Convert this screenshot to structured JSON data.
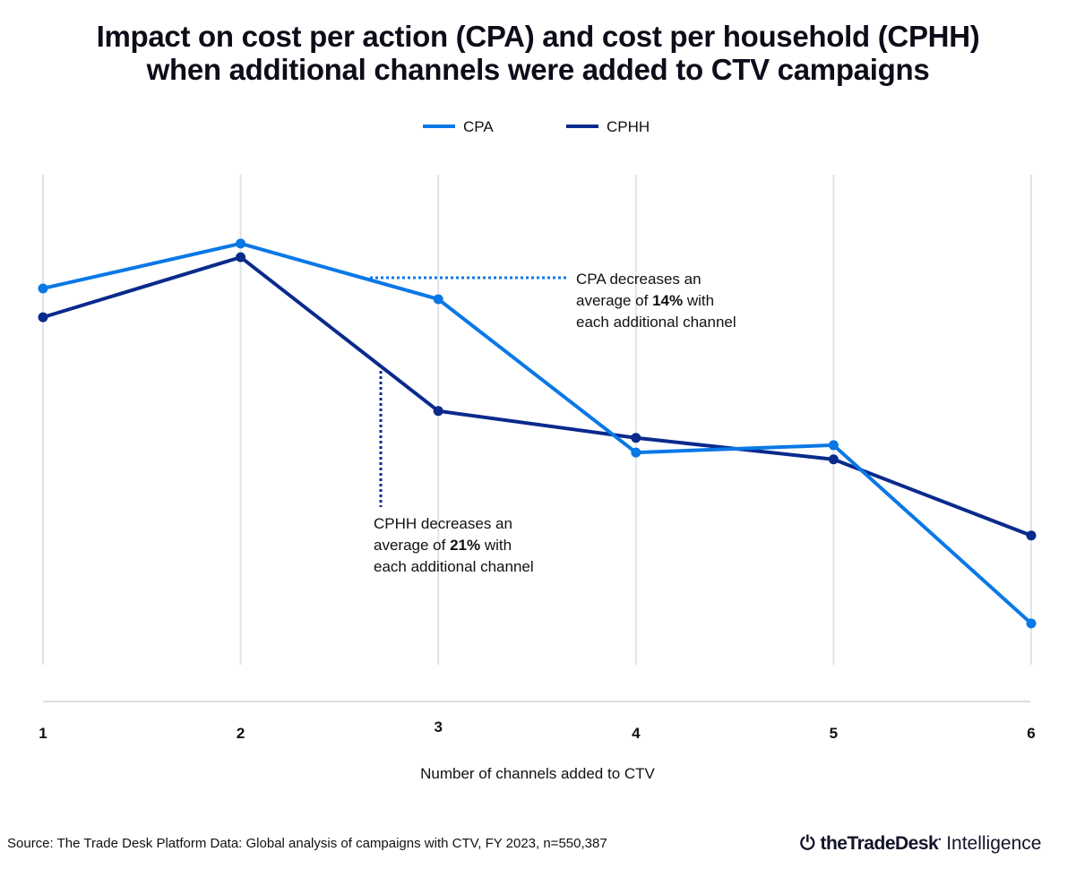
{
  "chart_data": {
    "type": "line",
    "title": "Impact on cost per action (CPA) and cost per household (CPHH) when additional channels were added to CTV campaigns",
    "title_lines": [
      "Impact on cost per action (CPA) and cost per household (CPHH)",
      "when additional channels were added to CTV campaigns"
    ],
    "xlabel": "Number of channels added to CTV",
    "ylabel": "",
    "categories": [
      "1",
      "2",
      "3",
      "4",
      "5",
      "6"
    ],
    "y_axis_labels_shown": false,
    "ylim": [
      0,
      100
    ],
    "grid": "vertical",
    "legend_placement": "top-center",
    "series": [
      {
        "name": "CPA",
        "color": "#0a78e6",
        "values": [
          76.7,
          85.9,
          74.5,
          43.1,
          44.6,
          8.1
        ]
      },
      {
        "name": "CPHH",
        "color": "#0a2a8c",
        "values": [
          70.8,
          83.1,
          51.6,
          46.1,
          41.7,
          26.1
        ]
      }
    ],
    "annotations": [
      {
        "series": "CPA",
        "pre": "CPA decreases an",
        "line2_pre": "average of ",
        "bold": "14%",
        "line2_post": " with",
        "line3": "each additional channel"
      },
      {
        "series": "CPHH",
        "pre": "CPHH decreases an",
        "line2_pre": "average of ",
        "bold": "21%",
        "line2_post": " with",
        "line3": "each additional channel"
      }
    ]
  },
  "footer": {
    "source": "Source: The Trade Desk Platform Data: Global analysis of campaigns with CTV, FY 2023, n=550,387",
    "logo_text": "theTradeDesk",
    "logo_suffix": "Intelligence"
  }
}
